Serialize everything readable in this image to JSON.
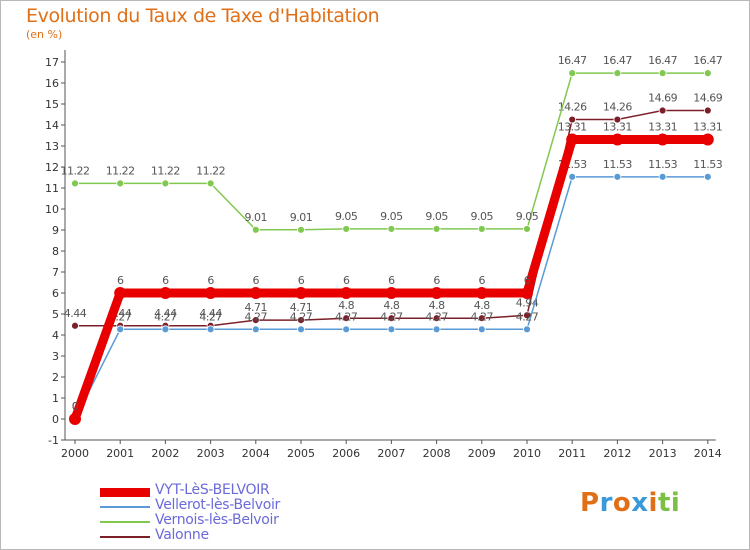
{
  "header": {
    "title": "Evolution du Taux de Taxe d'Habitation",
    "unit": "(en %)"
  },
  "logo": {
    "letters": [
      "P",
      "r",
      "o",
      "x",
      "i",
      "t",
      "i"
    ],
    "colors": [
      "#e07018",
      "#3a9ad8",
      "#e07018",
      "#3a9ad8",
      "#e07018",
      "#7ac143",
      "#7ac143"
    ]
  },
  "chart_data": {
    "type": "line",
    "x": [
      "2000",
      "2001",
      "2002",
      "2003",
      "2004",
      "2005",
      "2006",
      "2007",
      "2008",
      "2009",
      "2010",
      "2011",
      "2012",
      "2013",
      "2014"
    ],
    "ylim": [
      -1,
      17
    ],
    "yticks": [
      -1,
      0,
      1,
      2,
      3,
      4,
      5,
      6,
      7,
      8,
      9,
      10,
      11,
      12,
      13,
      14,
      15,
      16,
      17
    ],
    "grid": false,
    "legend_position": "bottom-left",
    "series": [
      {
        "name": "Valonne",
        "color": "#7b1f28",
        "width": 1.5,
        "marker": 3.5,
        "values": [
          4.44,
          4.44,
          4.44,
          4.44,
          4.71,
          4.71,
          4.8,
          4.8,
          4.8,
          4.8,
          4.94,
          14.26,
          14.26,
          14.69,
          14.69
        ],
        "labels": [
          "4.44",
          "4.44",
          "4.44",
          "4.44",
          "4.71",
          "4.71",
          "4.8",
          "4.8",
          "4.8",
          "4.8",
          "4.94",
          "14.26",
          "14.26",
          "14.69",
          "14.69"
        ]
      },
      {
        "name": "Vernois-lès-Belvoir",
        "color": "#80c850",
        "width": 1.5,
        "marker": 3.5,
        "values": [
          11.22,
          11.22,
          11.22,
          11.22,
          9.01,
          9.01,
          9.05,
          9.05,
          9.05,
          9.05,
          9.05,
          16.47,
          16.47,
          16.47,
          16.47
        ],
        "labels": [
          "11.22",
          "11.22",
          "11.22",
          "11.22",
          "9.01",
          "9.01",
          "9.05",
          "9.05",
          "9.05",
          "9.05",
          "9.05",
          "16.47",
          "16.47",
          "16.47",
          "16.47"
        ]
      },
      {
        "name": "Vellerot-lès-Belvoir",
        "color": "#5a9ad6",
        "width": 1.5,
        "marker": 3.5,
        "values": [
          0,
          4.27,
          4.27,
          4.27,
          4.27,
          4.27,
          4.27,
          4.27,
          4.27,
          4.27,
          4.27,
          11.53,
          11.53,
          11.53,
          11.53
        ],
        "labels": [
          "0",
          "4.27",
          "4.27",
          "4.27",
          "4.27",
          "4.27",
          "4.27",
          "4.27",
          "4.27",
          "4.27",
          "4.27",
          "11.53",
          "11.53",
          "11.53",
          "11.53"
        ]
      },
      {
        "name": "VYT-LèS-BELVOIR",
        "color": "#e80000",
        "width": 9,
        "marker": 6,
        "values": [
          0,
          6,
          6,
          6,
          6,
          6,
          6,
          6,
          6,
          6,
          6,
          13.31,
          13.31,
          13.31,
          13.31
        ],
        "labels": [
          "0",
          "6",
          "6",
          "6",
          "6",
          "6",
          "6",
          "6",
          "6",
          "6",
          "6",
          "13.31",
          "13.31",
          "13.31",
          "13.31"
        ]
      }
    ]
  }
}
